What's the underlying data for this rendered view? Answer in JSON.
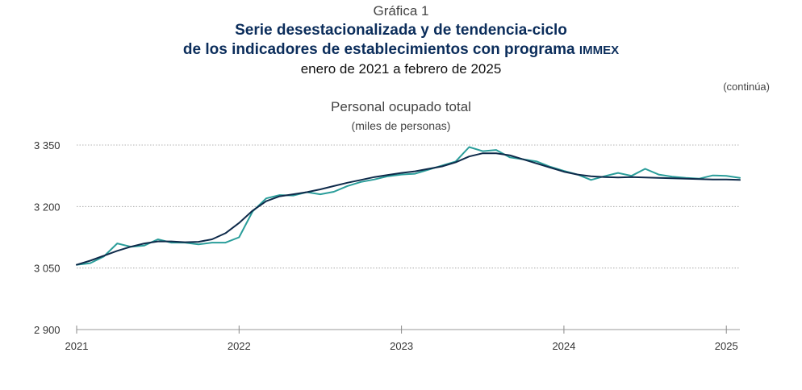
{
  "header": {
    "figure_number": "Gráfica 1",
    "title_line1": "Serie desestacionalizada y de tendencia-ciclo",
    "title_line2_main": "de los indicadores de establecimientos con programa",
    "title_line2_acronym": "IMMEX",
    "period": "enero de 2021 a febrero de 2025",
    "continues": "(continúa)"
  },
  "chart_data": {
    "type": "line",
    "title": "Personal ocupado total",
    "subtitle": "(miles de personas)",
    "ylim": [
      2900,
      3350
    ],
    "yticks": [
      2900,
      3050,
      3200,
      3350
    ],
    "ytick_labels": [
      "2 900",
      "3 050",
      "3 200",
      "3 350"
    ],
    "xtick_labels": [
      "2021",
      "2022",
      "2023",
      "2024",
      "2025"
    ],
    "xtick_positions": [
      0,
      12,
      24,
      36,
      48
    ],
    "grid": true,
    "x": [
      0,
      1,
      2,
      3,
      4,
      5,
      6,
      7,
      8,
      9,
      10,
      11,
      12,
      13,
      14,
      15,
      16,
      17,
      18,
      19,
      20,
      21,
      22,
      23,
      24,
      25,
      26,
      27,
      28,
      29,
      30,
      31,
      32,
      33,
      34,
      35,
      36,
      37,
      38,
      39,
      40,
      41,
      42,
      43,
      44,
      45,
      46,
      47,
      48,
      49
    ],
    "series": [
      {
        "color": "#2a9d9a",
        "values": [
          3058,
          3062,
          3078,
          3110,
          3102,
          3105,
          3120,
          3112,
          3112,
          3108,
          3112,
          3112,
          3125,
          3188,
          3220,
          3228,
          3227,
          3235,
          3230,
          3236,
          3250,
          3260,
          3266,
          3274,
          3278,
          3280,
          3290,
          3300,
          3310,
          3345,
          3335,
          3338,
          3320,
          3315,
          3310,
          3297,
          3287,
          3278,
          3265,
          3274,
          3282,
          3275,
          3292,
          3278,
          3273,
          3270,
          3268,
          3276,
          3275,
          3270
        ]
      },
      {
        "color": "#0e2a4a",
        "values": [
          3058,
          3068,
          3080,
          3092,
          3102,
          3110,
          3115,
          3115,
          3113,
          3114,
          3120,
          3135,
          3160,
          3190,
          3213,
          3225,
          3230,
          3235,
          3242,
          3250,
          3258,
          3265,
          3272,
          3277,
          3282,
          3286,
          3292,
          3298,
          3308,
          3322,
          3330,
          3330,
          3325,
          3315,
          3305,
          3295,
          3285,
          3278,
          3274,
          3272,
          3271,
          3272,
          3271,
          3270,
          3269,
          3268,
          3267,
          3266,
          3266,
          3265
        ]
      }
    ]
  }
}
